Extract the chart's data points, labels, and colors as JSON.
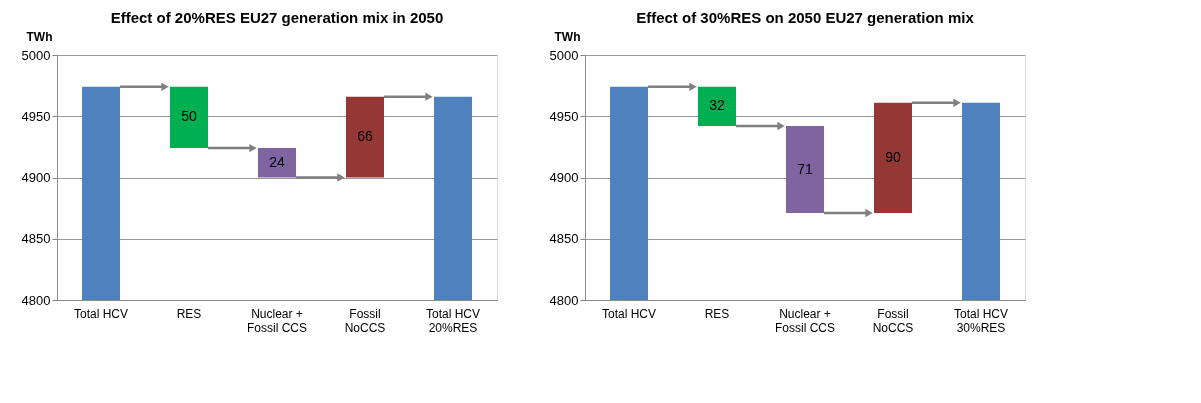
{
  "chart_data": [
    {
      "type": "bar",
      "title": "Effect of 20%RES EU27 generation mix in 2050",
      "ylabel": "TWh",
      "categories": [
        "Total HCV",
        "RES",
        "Nuclear +\nFossil CCS",
        "Fossil\nNoCCS",
        "Total HCV\n20%RES"
      ],
      "values": [
        4974,
        50,
        24,
        66,
        4966
      ],
      "base": [
        null,
        4924,
        4900,
        4900,
        null
      ],
      "colors": [
        "#4f81bd",
        "#00b050",
        "#8064a2",
        "#953735",
        "#4f81bd"
      ],
      "value_labels": [
        null,
        "50",
        "24",
        "66",
        null
      ],
      "ylim": [
        4800,
        5000
      ],
      "yticks": [
        4800,
        4850,
        4900,
        4950,
        5000
      ],
      "grid": "y"
    },
    {
      "type": "bar",
      "title": "Effect of 30%RES on 2050 EU27 generation mix",
      "ylabel": "TWh",
      "categories": [
        "Total HCV",
        "RES",
        "Nuclear +\nFossil CCS",
        "Fossil\nNoCCS",
        "Total HCV\n30%RES"
      ],
      "values": [
        4974,
        32,
        71,
        90,
        4961
      ],
      "base": [
        null,
        4942,
        4871,
        4871,
        null
      ],
      "colors": [
        "#4f81bd",
        "#00b050",
        "#8064a2",
        "#953735",
        "#4f81bd"
      ],
      "value_labels": [
        null,
        "32",
        "71",
        "90",
        null
      ],
      "ylim": [
        4800,
        5000
      ],
      "yticks": [
        4800,
        4850,
        4900,
        4950,
        5000
      ],
      "grid": "y"
    }
  ]
}
